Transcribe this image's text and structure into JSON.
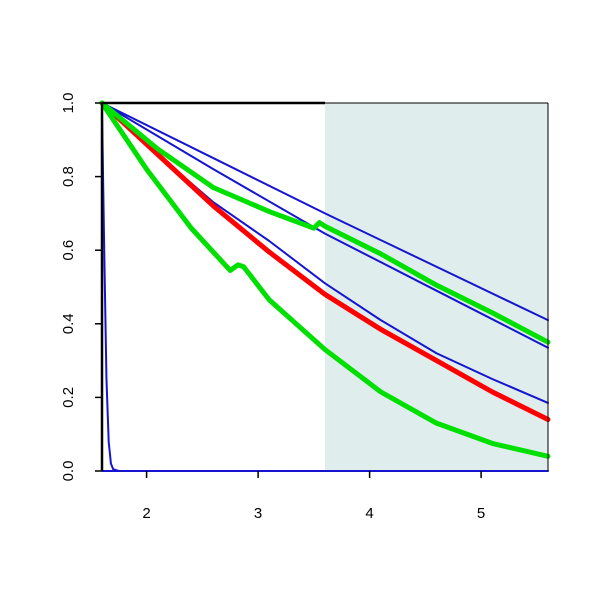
{
  "chart_data": {
    "type": "line",
    "title": "",
    "xlabel": "",
    "ylabel": "",
    "xlim": [
      1.6,
      5.6
    ],
    "ylim": [
      0,
      1
    ],
    "x_ticks": [
      "2",
      "3",
      "4",
      "5"
    ],
    "y_ticks": [
      "0.0",
      "0.2",
      "0.4",
      "0.6",
      "0.8",
      "1.0"
    ],
    "shaded_region": {
      "x_from": 3.6,
      "x_to": 5.6,
      "color": "#e0eded"
    },
    "series": [
      {
        "color": "#1515d0",
        "style": "thin",
        "x": [
          1.6,
          2.6,
          3.6,
          4.6,
          5.6
        ],
        "y": [
          1.0,
          0.85,
          0.7,
          0.555,
          0.41
        ]
      },
      {
        "color": "#1515d0",
        "style": "thin",
        "x": [
          1.6,
          2.6,
          3.6,
          4.6,
          5.6
        ],
        "y": [
          1.0,
          0.82,
          0.645,
          0.49,
          0.335
        ]
      },
      {
        "color": "#1515d0",
        "style": "thin",
        "x": [
          1.6,
          2.1,
          2.6,
          3.1,
          3.6,
          4.1,
          4.6,
          5.1,
          5.6
        ],
        "y": [
          1.0,
          0.86,
          0.73,
          0.625,
          0.51,
          0.41,
          0.32,
          0.25,
          0.185
        ]
      },
      {
        "color": "#1515d0",
        "style": "thin",
        "x": [
          1.6,
          1.62,
          1.64,
          1.66,
          1.68,
          1.7,
          1.75,
          5.6
        ],
        "y": [
          0.98,
          0.6,
          0.25,
          0.08,
          0.02,
          0.005,
          0.0,
          0.0
        ]
      },
      {
        "color": "#ff0000",
        "style": "thick",
        "x": [
          1.6,
          2.1,
          2.6,
          3.1,
          3.6,
          4.1,
          4.6,
          5.1,
          5.6
        ],
        "y": [
          1.0,
          0.86,
          0.72,
          0.595,
          0.48,
          0.385,
          0.3,
          0.215,
          0.14
        ]
      },
      {
        "color": "#00e000",
        "style": "thick",
        "x": [
          1.6,
          2.1,
          2.6,
          3.1,
          3.5,
          3.55,
          3.6,
          4.1,
          4.6,
          5.1,
          5.6
        ],
        "y": [
          1.0,
          0.875,
          0.77,
          0.705,
          0.66,
          0.675,
          0.665,
          0.59,
          0.505,
          0.43,
          0.35
        ]
      },
      {
        "color": "#00e000",
        "style": "thick",
        "x": [
          1.6,
          2.0,
          2.4,
          2.75,
          2.82,
          2.87,
          3.1,
          3.6,
          4.1,
          4.6,
          5.1,
          5.6
        ],
        "y": [
          1.0,
          0.82,
          0.66,
          0.545,
          0.56,
          0.555,
          0.465,
          0.33,
          0.215,
          0.13,
          0.075,
          0.04
        ]
      }
    ]
  }
}
